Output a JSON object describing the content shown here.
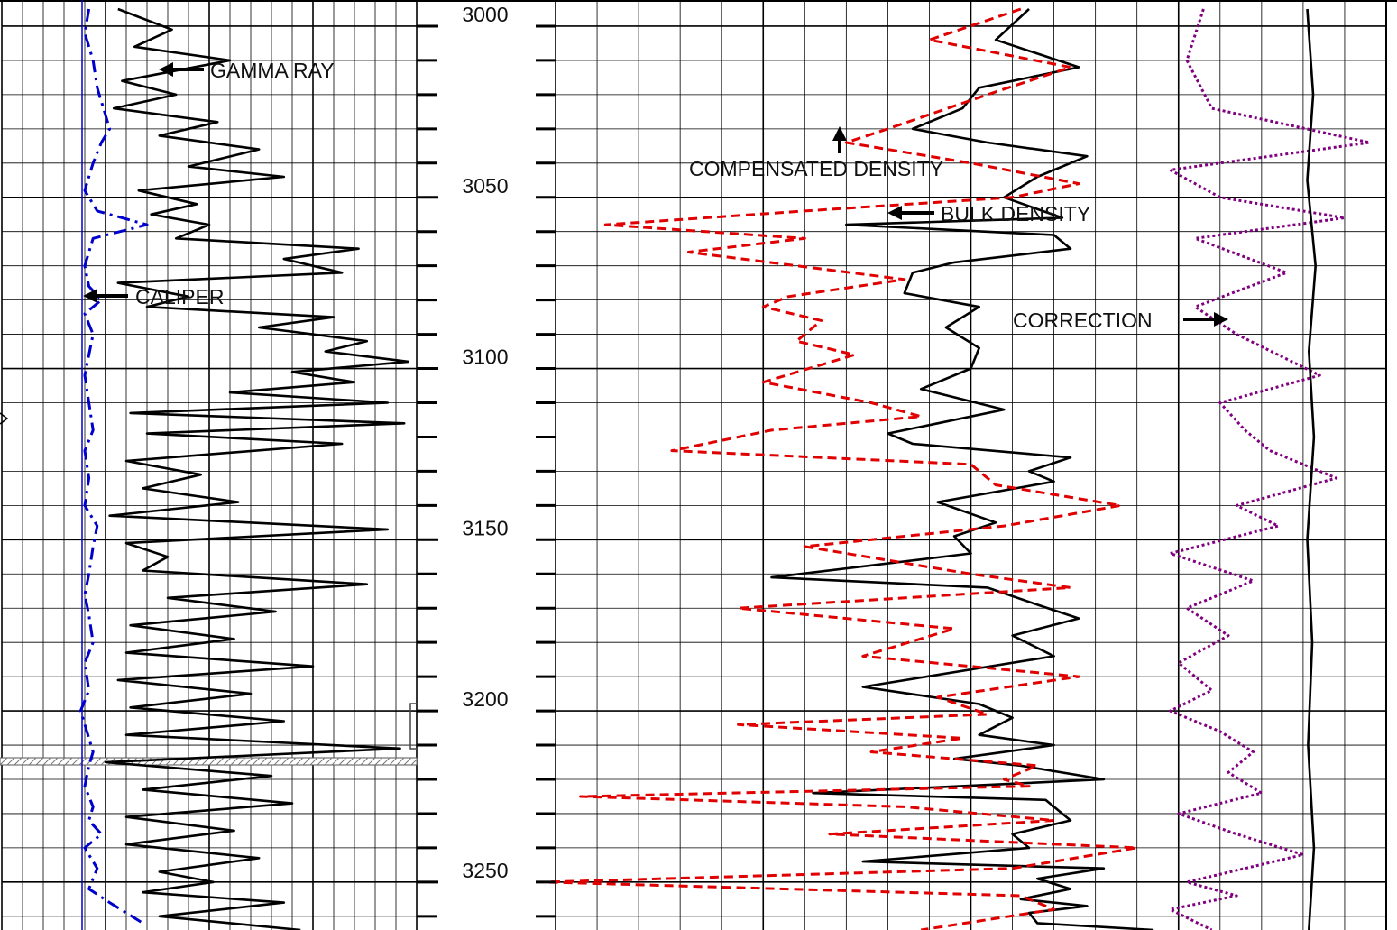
{
  "chart_data": {
    "type": "line",
    "depth_axis": {
      "ticks": [
        3000,
        3050,
        3100,
        3150,
        3200,
        3250
      ],
      "range": [
        2995,
        3264
      ]
    },
    "annotations": [
      {
        "text": "GAMMA RAY",
        "track": "left",
        "depth": 3017,
        "arrow": "left"
      },
      {
        "text": "CALIPER",
        "track": "left",
        "depth": 3082,
        "arrow": "left"
      },
      {
        "text": "COMPENSATED DENSITY",
        "track": "right",
        "depth": 3046,
        "arrow": "up"
      },
      {
        "text": "BULK DENSITY",
        "track": "right",
        "depth": 3056,
        "arrow": "left"
      },
      {
        "text": "CORRECTION",
        "track": "right",
        "depth": 3089,
        "arrow": "right"
      }
    ],
    "series": [
      {
        "key": "gamma",
        "track": "left",
        "style": "solid",
        "color": "#000000",
        "x": [
          0.28,
          0.41,
          0.32,
          0.55,
          0.29,
          0.42,
          0.27,
          0.52,
          0.38,
          0.62,
          0.45,
          0.68,
          0.33,
          0.47,
          0.36,
          0.5,
          0.42,
          0.86,
          0.68,
          0.82,
          0.28,
          0.45,
          0.35,
          0.8,
          0.62,
          0.88,
          0.78,
          0.98,
          0.7,
          0.85,
          0.55,
          0.93,
          0.31,
          0.97,
          0.35,
          0.82,
          0.3,
          0.48,
          0.34,
          0.57,
          0.26,
          0.93,
          0.3,
          0.4,
          0.34,
          0.88,
          0.4,
          0.66,
          0.31,
          0.56,
          0.3,
          0.75,
          0.28,
          0.6,
          0.31,
          0.68,
          0.3,
          0.96,
          0.25,
          0.65,
          0.34,
          0.7,
          0.3,
          0.56,
          0.3,
          0.62,
          0.38,
          0.51,
          0.34,
          0.68,
          0.38,
          0.72
        ],
        "depth": [
          2995,
          3001,
          3006,
          3010,
          3016,
          3020,
          3024,
          3028,
          3032,
          3036,
          3041,
          3044,
          3048,
          3052,
          3055,
          3058,
          3062,
          3065,
          3068,
          3072,
          3075,
          3079,
          3082,
          3085,
          3088,
          3092,
          3095,
          3098,
          3101,
          3104,
          3107,
          3110,
          3113,
          3116,
          3119,
          3122,
          3127,
          3131,
          3135,
          3139,
          3143,
          3147,
          3151,
          3155,
          3159,
          3163,
          3167,
          3171,
          3175,
          3179,
          3183,
          3187,
          3191,
          3195,
          3199,
          3203,
          3207,
          3211,
          3215,
          3219,
          3223,
          3227,
          3231,
          3235,
          3239,
          3243,
          3247,
          3250,
          3253,
          3256,
          3260,
          3264
        ]
      },
      {
        "key": "caliper",
        "track": "left",
        "style": "dashdot",
        "color": "#0000cc",
        "x": [
          0.21,
          0.2,
          0.22,
          0.23,
          0.26,
          0.24,
          0.22,
          0.2,
          0.23,
          0.35,
          0.22,
          0.2,
          0.21,
          0.24,
          0.2,
          0.22,
          0.21,
          0.2,
          0.21,
          0.22,
          0.2,
          0.21,
          0.2,
          0.23,
          0.22,
          0.21,
          0.2,
          0.21,
          0.22,
          0.2,
          0.21,
          0.19,
          0.2,
          0.22,
          0.21,
          0.2,
          0.22,
          0.21,
          0.24,
          0.2,
          0.23,
          0.21,
          0.26,
          0.34
        ],
        "depth": [
          2995,
          3002,
          3010,
          3018,
          3030,
          3034,
          3040,
          3048,
          3054,
          3058,
          3062,
          3070,
          3076,
          3080,
          3084,
          3090,
          3096,
          3102,
          3110,
          3118,
          3124,
          3132,
          3140,
          3146,
          3152,
          3160,
          3166,
          3172,
          3180,
          3186,
          3194,
          3200,
          3204,
          3212,
          3216,
          3222,
          3228,
          3232,
          3236,
          3240,
          3246,
          3252,
          3256,
          3262
        ]
      },
      {
        "key": "bulk_density",
        "track": "right",
        "style": "solid",
        "color": "#000000",
        "x": [
          0.57,
          0.53,
          0.63,
          0.51,
          0.49,
          0.43,
          0.52,
          0.64,
          0.58,
          0.54,
          0.61,
          0.35,
          0.6,
          0.62,
          0.48,
          0.43,
          0.42,
          0.51,
          0.47,
          0.51,
          0.5,
          0.44,
          0.54,
          0.46,
          0.4,
          0.43,
          0.62,
          0.57,
          0.6,
          0.46,
          0.53,
          0.48,
          0.5,
          0.26,
          0.52,
          0.58,
          0.63,
          0.55,
          0.6,
          0.37,
          0.51,
          0.55,
          0.51,
          0.6,
          0.48,
          0.56,
          0.66,
          0.31,
          0.59,
          0.62,
          0.55,
          0.57,
          0.37,
          0.66,
          0.58,
          0.62,
          0.56,
          0.64,
          0.57,
          0.58,
          0.72
        ],
        "depth": [
          2995,
          3004,
          3012,
          3018,
          3024,
          3030,
          3034,
          3038,
          3044,
          3050,
          3056,
          3058,
          3061,
          3065,
          3069,
          3072,
          3078,
          3082,
          3088,
          3094,
          3100,
          3106,
          3112,
          3116,
          3119,
          3122,
          3126,
          3130,
          3133,
          3139,
          3145,
          3149,
          3154,
          3161,
          3164,
          3169,
          3173,
          3178,
          3184,
          3193,
          3198,
          3202,
          3207,
          3210,
          3214,
          3216,
          3220,
          3224,
          3226,
          3232,
          3236,
          3240,
          3244,
          3246,
          3249,
          3252,
          3255,
          3257,
          3259,
          3262,
          3264
        ]
      },
      {
        "key": "compensated_density",
        "track": "right",
        "style": "dashed",
        "color": "#e00000",
        "x": [
          0.56,
          0.45,
          0.62,
          0.52,
          0.4,
          0.35,
          0.5,
          0.63,
          0.55,
          0.3,
          0.06,
          0.3,
          0.16,
          0.42,
          0.28,
          0.25,
          0.32,
          0.29,
          0.36,
          0.25,
          0.38,
          0.44,
          0.26,
          0.14,
          0.5,
          0.53,
          0.68,
          0.54,
          0.3,
          0.5,
          0.62,
          0.22,
          0.48,
          0.37,
          0.63,
          0.46,
          0.52,
          0.22,
          0.49,
          0.38,
          0.58,
          0.54,
          0.57,
          0.03,
          0.42,
          0.6,
          0.33,
          0.7,
          0.55,
          -0.01,
          0.56,
          0.6,
          0.44
        ],
        "depth": [
          2995,
          3004,
          3012,
          3020,
          3030,
          3034,
          3040,
          3046,
          3050,
          3054,
          3058,
          3062,
          3066,
          3074,
          3079,
          3082,
          3086,
          3092,
          3096,
          3104,
          3110,
          3114,
          3118,
          3124,
          3128,
          3134,
          3140,
          3146,
          3152,
          3160,
          3164,
          3170,
          3176,
          3184,
          3190,
          3196,
          3201,
          3204,
          3208,
          3212,
          3216,
          3220,
          3222,
          3225,
          3228,
          3232,
          3236,
          3240,
          3246,
          3250,
          3254,
          3258,
          3264
        ]
      },
      {
        "key": "correction",
        "track": "right",
        "style": "dotted",
        "color": "#800080",
        "x": [
          0.78,
          0.76,
          0.79,
          0.98,
          0.74,
          0.8,
          0.95,
          0.77,
          0.88,
          0.77,
          0.82,
          0.92,
          0.8,
          0.83,
          0.86,
          0.94,
          0.82,
          0.87,
          0.74,
          0.84,
          0.76,
          0.81,
          0.75,
          0.79,
          0.74,
          0.8,
          0.84,
          0.81,
          0.85,
          0.75,
          0.82,
          0.9,
          0.76,
          0.82,
          0.74,
          0.79
        ],
        "depth": [
          2995,
          3010,
          3024,
          3034,
          3042,
          3050,
          3056,
          3062,
          3072,
          3082,
          3090,
          3102,
          3110,
          3118,
          3124,
          3132,
          3140,
          3146,
          3154,
          3162,
          3170,
          3178,
          3186,
          3194,
          3200,
          3206,
          3212,
          3218,
          3224,
          3230,
          3236,
          3242,
          3250,
          3254,
          3258,
          3264
        ]
      },
      {
        "key": "edge_trace",
        "track": "right",
        "style": "solid",
        "color": "#000000",
        "x": [
          0.905,
          0.912,
          0.905,
          0.915,
          0.907,
          0.913,
          0.905,
          0.911,
          0.906,
          0.913,
          0.907
        ],
        "depth": [
          2995,
          3020,
          3045,
          3070,
          3095,
          3120,
          3150,
          3180,
          3210,
          3240,
          3264
        ]
      }
    ]
  }
}
